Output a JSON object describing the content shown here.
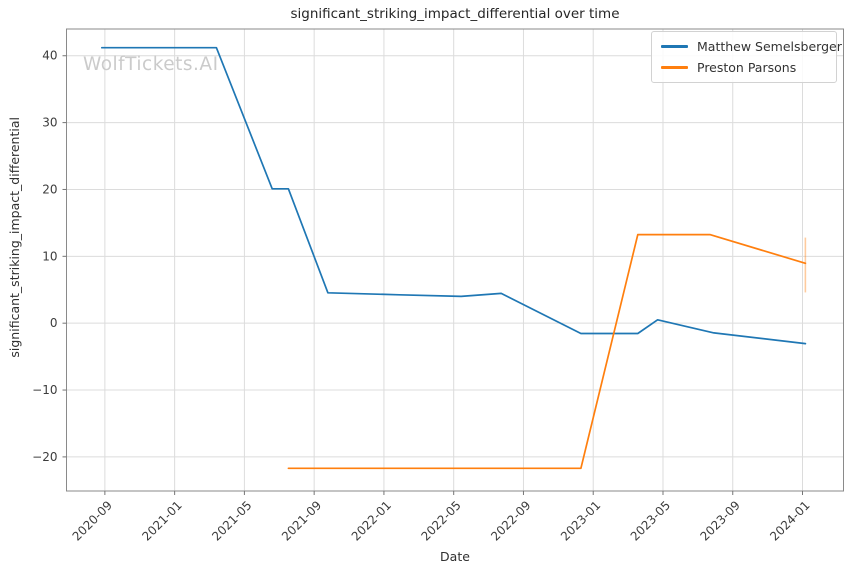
{
  "figure": {
    "title": "significant_striking_impact_differential over time",
    "watermark": "WolfTickets.AI"
  },
  "axes": {
    "xlabel": "Date",
    "ylabel": "significant_striking_impact_differential",
    "x_ticks": [
      "2020-09",
      "2021-01",
      "2021-05",
      "2021-09",
      "2022-01",
      "2022-05",
      "2022-09",
      "2023-01",
      "2023-05",
      "2023-09",
      "2024-01"
    ],
    "y_ticks": [
      {
        "value": 40,
        "label": "40"
      },
      {
        "value": 30,
        "label": "30"
      },
      {
        "value": 20,
        "label": "20"
      },
      {
        "value": 10,
        "label": "10"
      },
      {
        "value": 0,
        "label": "0"
      },
      {
        "value": -10,
        "label": "−10"
      },
      {
        "value": -20,
        "label": "−20"
      }
    ]
  },
  "legend": {
    "entries": [
      {
        "label": "Matthew Semelsberger",
        "color": "#1f77b4"
      },
      {
        "label": "Preston Parsons",
        "color": "#ff7f0e"
      }
    ]
  },
  "chart_data": {
    "type": "line",
    "title": "significant_striking_impact_differential over time",
    "xlabel": "Date",
    "ylabel": "significant_striking_impact_differential",
    "grid": true,
    "legend_position": "upper right",
    "x_axis_type": "date",
    "x_start_month": "2020-09",
    "xlim_months_from_start": [
      -2.2,
      42.35
    ],
    "ylim": [
      -25.1,
      44.0
    ],
    "series": [
      {
        "name": "Matthew Semelsberger",
        "color": "#1f77b4",
        "points": [
          [
            "2020-08-26",
            41.2
          ],
          [
            "2021-03-13",
            41.2
          ],
          [
            "2021-06-19",
            20.1
          ],
          [
            "2021-07-17",
            20.1
          ],
          [
            "2021-09-25",
            4.55
          ],
          [
            "2022-01-28",
            4.25
          ],
          [
            "2022-05-14",
            4.0
          ],
          [
            "2022-07-23",
            4.45
          ],
          [
            "2022-12-10",
            -1.55
          ],
          [
            "2023-03-18",
            -1.55
          ],
          [
            "2023-04-22",
            0.5
          ],
          [
            "2023-07-29",
            -1.45
          ],
          [
            "2024-01-06",
            -3.05
          ]
        ]
      },
      {
        "name": "Preston Parsons",
        "color": "#ff7f0e",
        "points": [
          [
            "2021-07-17",
            -21.7
          ],
          [
            "2022-12-10",
            -21.7
          ],
          [
            "2023-03-18",
            13.25
          ],
          [
            "2023-07-22",
            13.25
          ],
          [
            "2024-01-06",
            8.95
          ]
        ],
        "error_bar": {
          "date": "2024-01-06",
          "low": 4.6,
          "high": 12.8
        }
      }
    ]
  }
}
